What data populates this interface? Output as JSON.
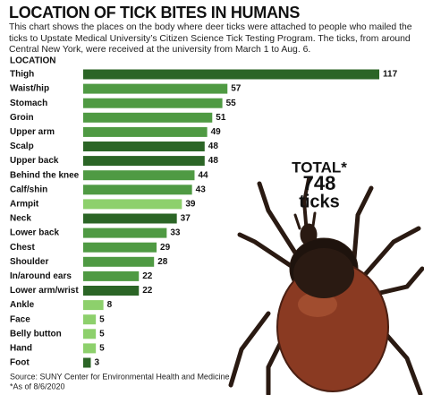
{
  "chart_data": {
    "type": "hbar",
    "title": "LOCATION OF TICK BITES IN HUMANS",
    "subtitle": "This chart shows the places on the body where deer ticks were attached to people who mailed the ticks to Upstate Medical University’s Citizen Science Tick Testing Program. The ticks, from around Central New York, were received at the university from March 1 to Aug. 6.",
    "category_header": "LOCATION",
    "categories": [
      "Thigh",
      "Waist/hip",
      "Stomach",
      "Groin",
      "Upper arm",
      "Scalp",
      "Upper back",
      "Behind the knee",
      "Calf/shin",
      "Armpit",
      "Neck",
      "Lower back",
      "Chest",
      "Shoulder",
      "In/around ears",
      "Lower arm/wrist",
      "Ankle",
      "Face",
      "Belly button",
      "Hand",
      "Foot"
    ],
    "values": [
      117,
      57,
      55,
      51,
      49,
      48,
      48,
      44,
      43,
      39,
      37,
      33,
      29,
      28,
      22,
      22,
      8,
      5,
      5,
      5,
      3
    ],
    "colors": [
      "#2b6526",
      "#4f9a43",
      "#4f9a43",
      "#4f9a43",
      "#4f9a43",
      "#2b6526",
      "#2b6526",
      "#4f9a43",
      "#4f9a43",
      "#8dd06c",
      "#2b6526",
      "#4f9a43",
      "#4f9a43",
      "#4f9a43",
      "#4f9a43",
      "#2b6526",
      "#8dd06c",
      "#8dd06c",
      "#8dd06c",
      "#8dd06c",
      "#2b6526"
    ],
    "total": {
      "label": "TOTAL*",
      "value": 748,
      "unit": "ticks"
    },
    "source": "Source: SUNY Center for Environmental Health and Medicine",
    "footnote": "*As of 8/6/2020"
  }
}
